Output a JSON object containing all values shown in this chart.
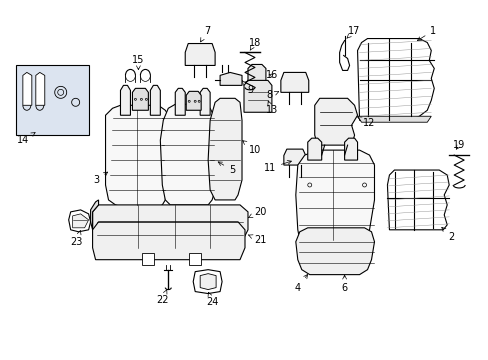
{
  "bg_color": "#ffffff",
  "line_color": "#000000",
  "fig_width": 4.89,
  "fig_height": 3.6,
  "dpi": 100,
  "label_fs": 7,
  "line_width": 0.8
}
